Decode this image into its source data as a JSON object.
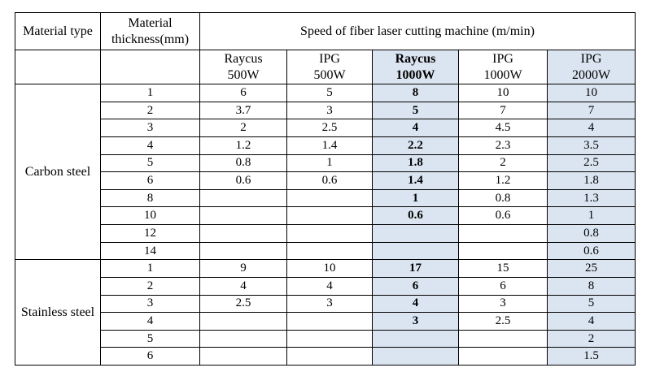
{
  "table": {
    "header": {
      "material_type": "Material type",
      "material_thickness": "Material thickness(mm)",
      "speed_title": "Speed of fiber laser cutting machine (m/min)",
      "machines": [
        {
          "line1": "Raycus",
          "line2": "500W",
          "highlight": false,
          "bold": false
        },
        {
          "line1": "IPG",
          "line2": "500W",
          "highlight": false,
          "bold": false
        },
        {
          "line1": "Raycus",
          "line2": "1000W",
          "highlight": true,
          "bold": true
        },
        {
          "line1": "IPG",
          "line2": "1000W",
          "highlight": false,
          "bold": false
        },
        {
          "line1": "IPG",
          "line2": "2000W",
          "highlight": true,
          "bold": false
        }
      ]
    },
    "groups": [
      {
        "material": "Carbon steel",
        "rows": [
          {
            "thickness": "1",
            "speeds": [
              "6",
              "5",
              "8",
              "10",
              "10"
            ]
          },
          {
            "thickness": "2",
            "speeds": [
              "3.7",
              "3",
              "5",
              "7",
              "7"
            ]
          },
          {
            "thickness": "3",
            "speeds": [
              "2",
              "2.5",
              "4",
              "4.5",
              "4"
            ]
          },
          {
            "thickness": "4",
            "speeds": [
              "1.2",
              "1.4",
              "2.2",
              "2.3",
              "3.5"
            ]
          },
          {
            "thickness": "5",
            "speeds": [
              "0.8",
              "1",
              "1.8",
              "2",
              "2.5"
            ]
          },
          {
            "thickness": "6",
            "speeds": [
              "0.6",
              "0.6",
              "1.4",
              "1.2",
              "1.8"
            ]
          },
          {
            "thickness": "8",
            "speeds": [
              "",
              "",
              "1",
              "0.8",
              "1.3"
            ]
          },
          {
            "thickness": "10",
            "speeds": [
              "",
              "",
              "0.6",
              "0.6",
              "1"
            ]
          },
          {
            "thickness": "12",
            "speeds": [
              "",
              "",
              "",
              "",
              "0.8"
            ]
          },
          {
            "thickness": "14",
            "speeds": [
              "",
              "",
              "",
              "",
              "0.6"
            ]
          }
        ]
      },
      {
        "material": "Stainless steel",
        "rows": [
          {
            "thickness": "1",
            "speeds": [
              "9",
              "10",
              "17",
              "15",
              "25"
            ]
          },
          {
            "thickness": "2",
            "speeds": [
              "4",
              "4",
              "6",
              "6",
              "8"
            ]
          },
          {
            "thickness": "3",
            "speeds": [
              "2.5",
              "3",
              "4",
              "3",
              "5"
            ]
          },
          {
            "thickness": "4",
            "speeds": [
              "",
              "",
              "3",
              "2.5",
              "4"
            ]
          },
          {
            "thickness": "5",
            "speeds": [
              "",
              "",
              "",
              "",
              "2"
            ]
          },
          {
            "thickness": "6",
            "speeds": [
              "",
              "",
              "",
              "",
              "1.5"
            ]
          }
        ]
      }
    ],
    "colors": {
      "highlight": "#dbe5f1",
      "border": "#000000",
      "text": "#000000"
    }
  }
}
